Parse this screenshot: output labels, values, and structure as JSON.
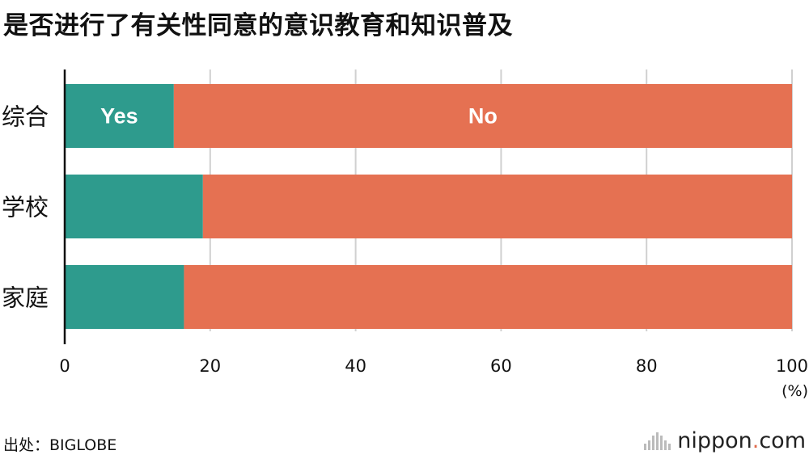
{
  "title": "是否进行了有关性同意的意识教育和知识普及",
  "source": "出处：BIGLOBE",
  "brand": {
    "name": "nippon",
    "dot": ".",
    "tld": "com"
  },
  "colors": {
    "yes": "#2e9b8d",
    "no": "#e57152",
    "grid": "#d0d0d0",
    "axis": "#111111"
  },
  "chart_data": {
    "type": "bar",
    "orientation": "horizontal",
    "stacked": true,
    "categories": [
      "综合",
      "学校",
      "家庭"
    ],
    "series": [
      {
        "name": "Yes",
        "values": [
          15,
          19,
          16.4
        ]
      },
      {
        "name": "No",
        "values": [
          85,
          81,
          83.6
        ]
      }
    ],
    "xlim": [
      0,
      100
    ],
    "xticks": [
      "0",
      "20",
      "40",
      "60",
      "80",
      "100"
    ],
    "xunit": "(%)",
    "series_labels_on_first_bar": true,
    "grid": true
  }
}
